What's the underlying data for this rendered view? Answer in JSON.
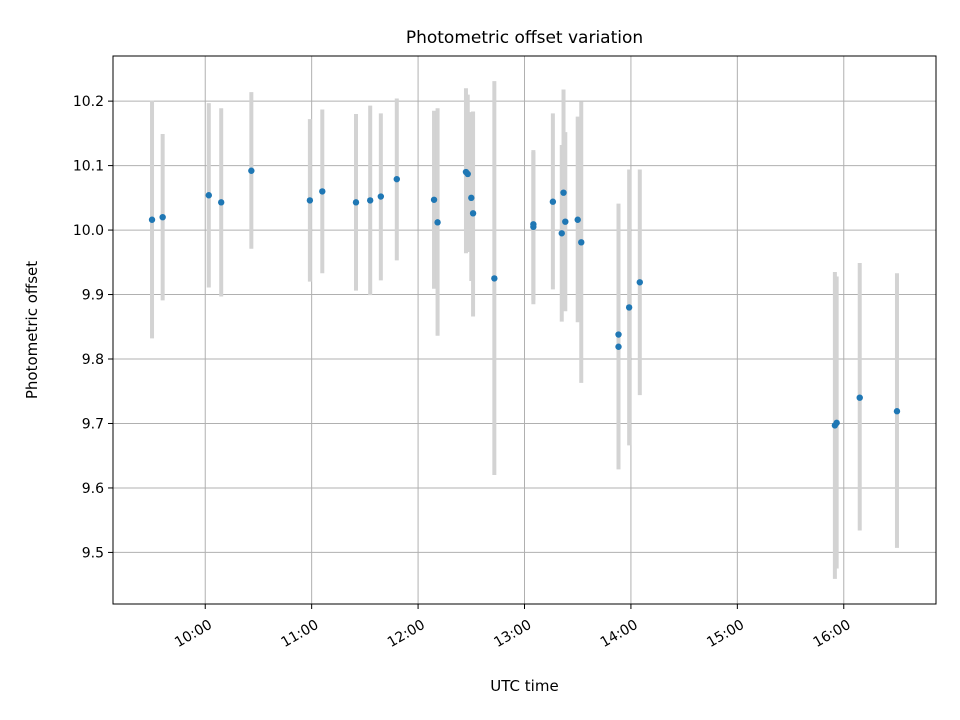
{
  "chart_data": {
    "type": "scatter",
    "title": "Photometric offset variation",
    "xlabel": "UTC time",
    "ylabel": "Photometric offset",
    "xlim": [
      "09:08",
      "16:52"
    ],
    "ylim": [
      9.42,
      10.27
    ],
    "x_ticks": [
      "10:00",
      "11:00",
      "12:00",
      "13:00",
      "14:00",
      "15:00",
      "16:00"
    ],
    "y_ticks": [
      "9.5",
      "9.6",
      "9.7",
      "9.8",
      "9.9",
      "10.0",
      "10.1",
      "10.2"
    ],
    "grid": true,
    "colors": {
      "point": "#1f77b4",
      "errorbar": "#d3d3d3",
      "grid": "#b0b0b0"
    },
    "points": [
      {
        "time": "09:30",
        "y": 10.016,
        "err_low": 9.832,
        "err_high": 10.201
      },
      {
        "time": "09:36",
        "y": 10.02,
        "err_low": 9.891,
        "err_high": 10.149
      },
      {
        "time": "10:02",
        "y": 10.054,
        "err_low": 9.911,
        "err_high": 10.197
      },
      {
        "time": "10:09",
        "y": 10.043,
        "err_low": 9.897,
        "err_high": 10.189
      },
      {
        "time": "10:26",
        "y": 10.092,
        "err_low": 9.971,
        "err_high": 10.214
      },
      {
        "time": "10:59",
        "y": 10.046,
        "err_low": 9.92,
        "err_high": 10.172
      },
      {
        "time": "11:06",
        "y": 10.06,
        "err_low": 9.933,
        "err_high": 10.187
      },
      {
        "time": "11:25",
        "y": 10.043,
        "err_low": 9.906,
        "err_high": 10.18
      },
      {
        "time": "11:33",
        "y": 10.046,
        "err_low": 9.899,
        "err_high": 10.193
      },
      {
        "time": "11:39",
        "y": 10.052,
        "err_low": 9.922,
        "err_high": 10.181
      },
      {
        "time": "11:48",
        "y": 10.079,
        "err_low": 9.953,
        "err_high": 10.204
      },
      {
        "time": "12:09",
        "y": 10.047,
        "err_low": 9.909,
        "err_high": 10.185
      },
      {
        "time": "12:11",
        "y": 10.012,
        "err_low": 9.836,
        "err_high": 10.189
      },
      {
        "time": "12:27",
        "y": 10.09,
        "err_low": 9.964,
        "err_high": 10.22
      },
      {
        "time": "12:28",
        "y": 10.087,
        "err_low": 9.966,
        "err_high": 10.21
      },
      {
        "time": "12:30",
        "y": 10.05,
        "err_low": 9.921,
        "err_high": 10.183
      },
      {
        "time": "12:31",
        "y": 10.026,
        "err_low": 9.866,
        "err_high": 10.184
      },
      {
        "time": "12:43",
        "y": 9.925,
        "err_low": 9.62,
        "err_high": 10.231
      },
      {
        "time": "13:05",
        "y": 10.005,
        "err_low": 9.885,
        "err_high": 10.124
      },
      {
        "time": "13:05",
        "y": 10.009,
        "err_low": 9.891,
        "err_high": 10.121
      },
      {
        "time": "13:16",
        "y": 10.044,
        "err_low": 9.908,
        "err_high": 10.181
      },
      {
        "time": "13:21",
        "y": 9.995,
        "err_low": 9.858,
        "err_high": 10.132
      },
      {
        "time": "13:22",
        "y": 10.058,
        "err_low": 9.897,
        "err_high": 10.218
      },
      {
        "time": "13:23",
        "y": 10.013,
        "err_low": 9.874,
        "err_high": 10.152
      },
      {
        "time": "13:30",
        "y": 10.016,
        "err_low": 9.857,
        "err_high": 10.176
      },
      {
        "time": "13:32",
        "y": 9.981,
        "err_low": 9.763,
        "err_high": 10.199
      },
      {
        "time": "13:53",
        "y": 9.838,
        "err_low": 9.629,
        "err_high": 10.041
      },
      {
        "time": "13:53",
        "y": 9.819,
        "err_low": 9.629,
        "err_high": 10.008
      },
      {
        "time": "13:59",
        "y": 9.88,
        "err_low": 9.666,
        "err_high": 10.094
      },
      {
        "time": "14:05",
        "y": 9.919,
        "err_low": 9.744,
        "err_high": 10.094
      },
      {
        "time": "15:55",
        "y": 9.697,
        "err_low": 9.459,
        "err_high": 9.935
      },
      {
        "time": "15:56",
        "y": 9.701,
        "err_low": 9.475,
        "err_high": 9.928
      },
      {
        "time": "16:09",
        "y": 9.74,
        "err_low": 9.534,
        "err_high": 9.949
      },
      {
        "time": "16:30",
        "y": 9.719,
        "err_low": 9.507,
        "err_high": 9.933
      }
    ]
  }
}
